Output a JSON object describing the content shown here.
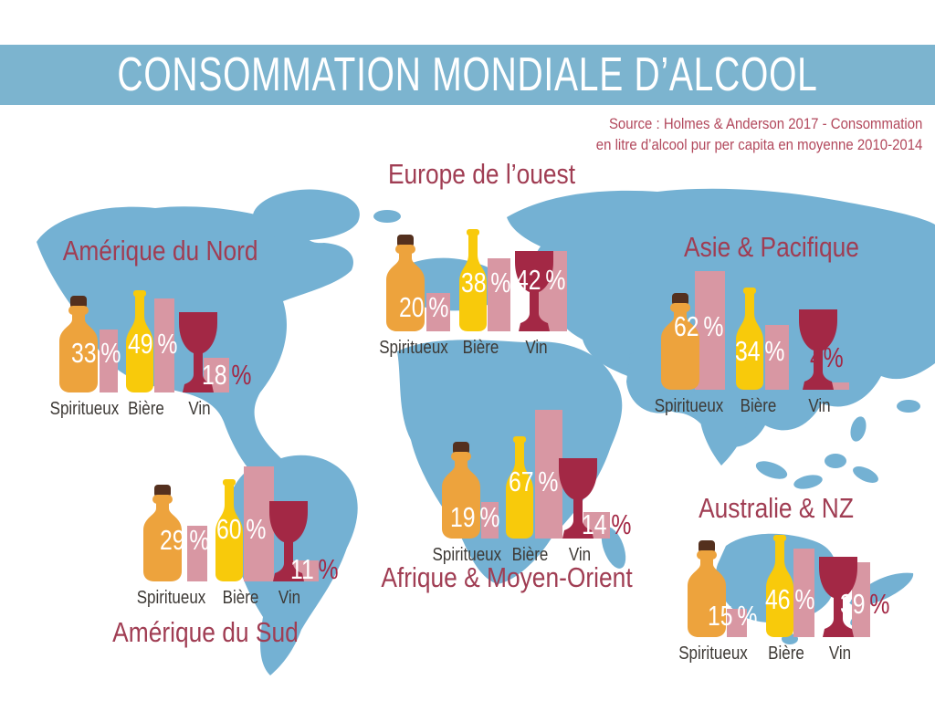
{
  "banner": {
    "title": "CONSOMMATION MONDIALE D’ALCOOL",
    "bg_color": "#7cb4cf"
  },
  "source": {
    "line1": "Source : Holmes & Anderson 2017 - Consommation",
    "line2": "en litre d’alcool pur per capita en moyenne 2010-2014"
  },
  "colors": {
    "banner_blue": "#7cb4cf",
    "map_blue": "#74b1d3",
    "spirits_orange": "#eda33d",
    "beer_yellow": "#f8ca0b",
    "wine_red": "#a32845",
    "bar_pink": "#d897a3",
    "title_red": "#a03d53",
    "label_dark": "#3d3935",
    "cork_brown": "#54301e"
  },
  "icons": {
    "spirits": "spirits-bottle",
    "beer": "beer-bottle",
    "wine": "wine-glass"
  },
  "chart_data": {
    "type": "bar",
    "title": "CONSOMMATION MONDIALE D’ALCOOL",
    "source": "Source : Holmes & Anderson 2017 - Consommation en litre d’alcool pur per capita en moyenne 2010-2014",
    "unit": "%",
    "categories": [
      "Spiritueux",
      "Bière",
      "Vin"
    ],
    "regions": [
      {
        "name": "Amérique du Nord",
        "items": [
          {
            "label": "Spiritueux",
            "value": 33,
            "unit": "%"
          },
          {
            "label": "Bière",
            "value": 49,
            "unit": "%"
          },
          {
            "label": "Vin",
            "value": 18,
            "unit": "%"
          }
        ]
      },
      {
        "name": "Europe de l’ouest",
        "items": [
          {
            "label": "Spiritueux",
            "value": 20,
            "unit": "%"
          },
          {
            "label": "Bière",
            "value": 38,
            "unit": "%"
          },
          {
            "label": "Vin",
            "value": 42,
            "unit": "%"
          }
        ]
      },
      {
        "name": "Asie & Pacifique",
        "items": [
          {
            "label": "Spiritueux",
            "value": 62,
            "unit": "%"
          },
          {
            "label": "Bière",
            "value": 34,
            "unit": "%"
          },
          {
            "label": "Vin",
            "value": 4,
            "unit": "%"
          }
        ]
      },
      {
        "name": "Amérique du Sud",
        "items": [
          {
            "label": "Spiritueux",
            "value": 29,
            "unit": "%"
          },
          {
            "label": "Bière",
            "value": 60,
            "unit": "%"
          },
          {
            "label": "Vin",
            "value": 11,
            "unit": "%"
          }
        ]
      },
      {
        "name": "Afrique & Moyen-Orient",
        "items": [
          {
            "label": "Spiritueux",
            "value": 19,
            "unit": "%"
          },
          {
            "label": "Bière",
            "value": 67,
            "unit": "%"
          },
          {
            "label": "Vin",
            "value": 14,
            "unit": "%"
          }
        ]
      },
      {
        "name": "Australie & NZ",
        "items": [
          {
            "label": "Spiritueux",
            "value": 15,
            "unit": "%"
          },
          {
            "label": "Bière",
            "value": 46,
            "unit": "%"
          },
          {
            "label": "Vin",
            "value": 39,
            "unit": "%"
          }
        ]
      }
    ]
  }
}
